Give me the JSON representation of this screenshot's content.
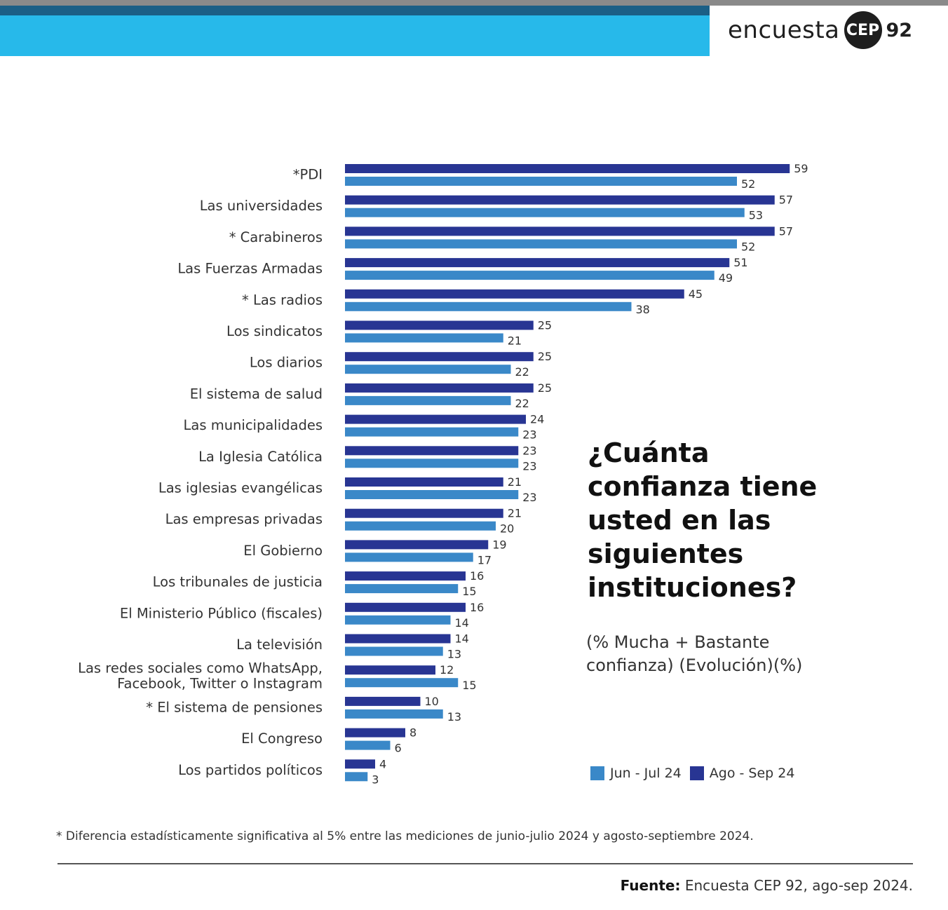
{
  "brand": {
    "word": "encuesta",
    "badge": "CEP",
    "number": "92"
  },
  "question": "¿Cuánta confianza tiene usted en las siguientes instituciones?",
  "subtitle": "(% Mucha + Bastante confianza) (Evolución)(%)",
  "legend": {
    "series1": "Jun - Jul 24",
    "series2": "Ago - Sep 24"
  },
  "footnote": "* Diferencia estadísticamente significativa al 5% entre las mediciones de junio-julio 2024 y agosto-septiembre 2024.",
  "source": {
    "label": "Fuente:",
    "text": "Encuesta CEP 92, ago-sep 2024."
  },
  "colors": {
    "ago_sep": "#283593",
    "jun_jul": "#3a88c8",
    "banner": "#27b9ea"
  },
  "chart_data": {
    "type": "bar",
    "orientation": "horizontal",
    "categories": [
      "*PDI",
      "Las universidades",
      "* Carabineros",
      "Las Fuerzas Armadas",
      "* Las radios",
      "Los sindicatos",
      "Los diarios",
      "El sistema de salud",
      "Las municipalidades",
      "La Iglesia Católica",
      "Las iglesias evangélicas",
      "Las empresas privadas",
      "El Gobierno",
      "Los tribunales de justicia",
      "El Ministerio Público (fiscales)",
      "La televisión",
      "Las redes sociales como WhatsApp,\nFacebook, Twitter o Instagram",
      "* El sistema de pensiones",
      "El Congreso",
      "Los partidos políticos"
    ],
    "series": [
      {
        "name": "Ago - Sep 24",
        "values": [
          59,
          57,
          57,
          51,
          45,
          25,
          25,
          25,
          24,
          23,
          21,
          21,
          19,
          16,
          16,
          14,
          12,
          10,
          8,
          4
        ]
      },
      {
        "name": "Jun - Jul 24",
        "values": [
          52,
          53,
          52,
          49,
          38,
          21,
          22,
          22,
          23,
          23,
          23,
          20,
          17,
          15,
          14,
          13,
          15,
          13,
          6,
          3
        ]
      }
    ],
    "data_labels": true,
    "legend": "bottom-right"
  }
}
